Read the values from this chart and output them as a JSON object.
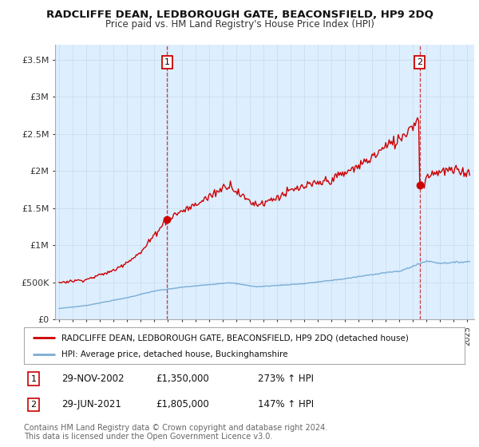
{
  "title": "RADCLIFFE DEAN, LEDBOROUGH GATE, BEACONSFIELD, HP9 2DQ",
  "subtitle": "Price paid vs. HM Land Registry's House Price Index (HPI)",
  "ylabel_ticks": [
    "£0",
    "£500K",
    "£1M",
    "£1.5M",
    "£2M",
    "£2.5M",
    "£3M",
    "£3.5M"
  ],
  "ytick_values": [
    0,
    500000,
    1000000,
    1500000,
    2000000,
    2500000,
    3000000,
    3500000
  ],
  "ylim": [
    0,
    3700000
  ],
  "xlim_start": 1994.7,
  "xlim_end": 2025.5,
  "property_color": "#cc0000",
  "hpi_color": "#7aadd4",
  "chart_bg": "#ddeeff",
  "legend1": "RADCLIFFE DEAN, LEDBOROUGH GATE, BEACONSFIELD, HP9 2DQ (detached house)",
  "legend2": "HPI: Average price, detached house, Buckinghamshire",
  "point1_date": "29-NOV-2002",
  "point1_price": 1350000,
  "point1_label": "273% ↑ HPI",
  "point1_x": 2002.92,
  "point2_date": "29-JUN-2021",
  "point2_price": 1805000,
  "point2_label": "147% ↑ HPI",
  "point2_x": 2021.5,
  "footer": "Contains HM Land Registry data © Crown copyright and database right 2024.\nThis data is licensed under the Open Government Licence v3.0.",
  "background_color": "#ffffff",
  "grid_color": "#ccddee",
  "title_fontsize": 9.5,
  "subtitle_fontsize": 8.5
}
